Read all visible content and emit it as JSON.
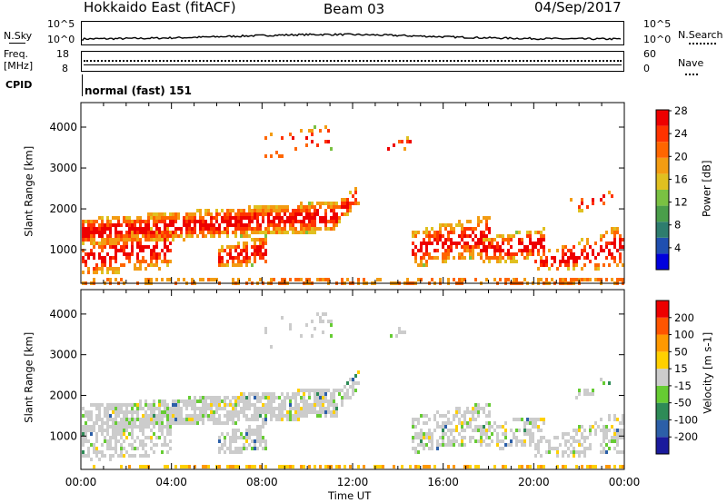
{
  "header": {
    "station": "Hokkaido East (fitACF)",
    "beam": "Beam 03",
    "date": "04/Sep/2017"
  },
  "top_panels": {
    "nsky_label": "N.Sky",
    "nsky_ticks": [
      "10^5",
      "10^0"
    ],
    "nsearch_label": "N.Search",
    "freq_label": "Freq.",
    "freq_unit": "[MHz]",
    "freq_ticks": [
      "18",
      "8"
    ],
    "nave_label": "Nave",
    "nave_ticks": [
      "60",
      "0"
    ],
    "cpid_label": "CPID",
    "cpid_text": "normal (fast) 151"
  },
  "chart_data": [
    {
      "type": "heatmap",
      "title": "",
      "ylabel": "Slant Range [km]",
      "xlabel": "",
      "ylim": [
        180,
        4600
      ],
      "yticks": [
        1000,
        2000,
        3000,
        4000
      ],
      "colorbar": {
        "label": "Power [dB]",
        "ticks": [
          "4",
          "8",
          "12",
          "16",
          "20",
          "24",
          "28"
        ],
        "colors": [
          "#0000dd",
          "#1f4fb0",
          "#2e7d6e",
          "#4a9e4a",
          "#7ac142",
          "#e0c020",
          "#f39c12",
          "#ff6600",
          "#ff3300",
          "#ee0000"
        ]
      }
    },
    {
      "type": "heatmap",
      "title": "",
      "ylabel": "Slant Range [km]",
      "xlabel": "Time UT",
      "ylim": [
        180,
        4600
      ],
      "yticks": [
        1000,
        2000,
        3000,
        4000
      ],
      "xticks": [
        "00:00",
        "04:00",
        "08:00",
        "12:00",
        "16:00",
        "20:00",
        "00:00"
      ],
      "colorbar": {
        "label": "Velocity [m s-1]",
        "ticks": [
          "200",
          "100",
          "50",
          "15",
          "-15",
          "-50",
          "-100",
          "-200"
        ],
        "colors": [
          "#1a1a9c",
          "#2c5fa8",
          "#2e8b57",
          "#66cc33",
          "#cccccc",
          "#ffd000",
          "#ff9900",
          "#ff5500",
          "#ee0000"
        ]
      }
    }
  ]
}
